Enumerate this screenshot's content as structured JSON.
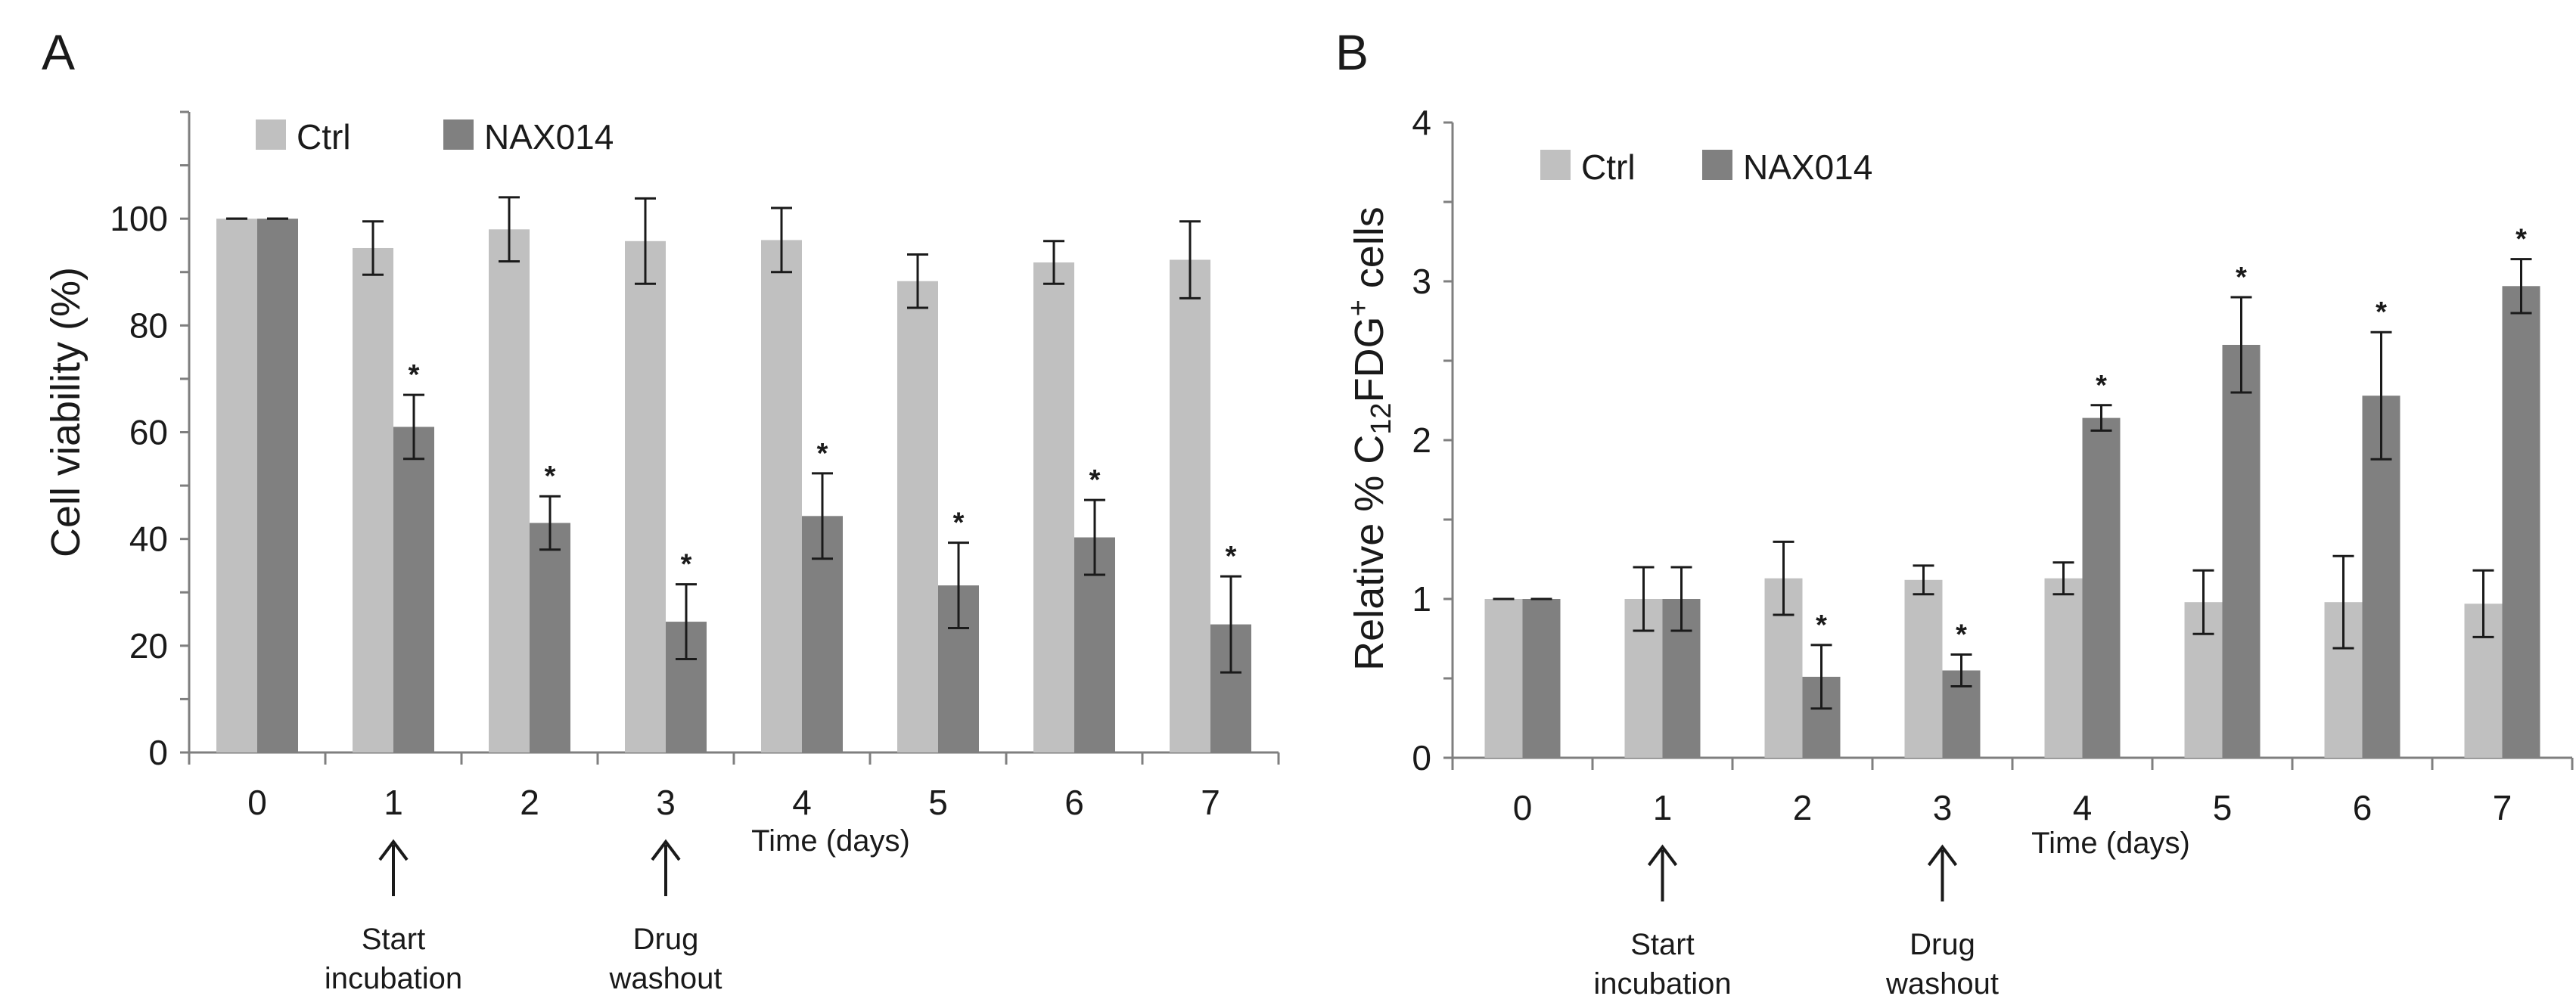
{
  "colors": {
    "ctrl": "#c0c0c0",
    "nax": "#808080",
    "axis": "#7f7f7f",
    "text": "#1a1a1a"
  },
  "chart_data": [
    {
      "panel": "A",
      "type": "bar",
      "ylabel": "Cell viability (%)",
      "xlabel": "Time (days)",
      "categories": [
        "0",
        "1",
        "2",
        "3",
        "4",
        "5",
        "6",
        "7"
      ],
      "ylim": [
        0,
        120
      ],
      "yticks": [
        "0",
        "20",
        "40",
        "60",
        "80",
        "100"
      ],
      "ytick_values": [
        0,
        20,
        40,
        60,
        80,
        100
      ],
      "legend": [
        "Ctrl",
        "NAX014"
      ],
      "legend_position": "top-left",
      "series": [
        {
          "name": "Ctrl",
          "values": [
            100,
            94.5,
            98,
            95.8,
            96,
            88.3,
            91.8,
            92.3
          ],
          "errors": [
            0,
            5,
            6,
            8,
            6,
            5,
            4,
            7.2
          ]
        },
        {
          "name": "NAX014",
          "values": [
            100,
            61,
            43,
            24.5,
            44.3,
            31.3,
            40.3,
            24
          ],
          "errors": [
            0,
            6,
            5,
            7,
            8,
            8,
            7,
            9
          ]
        }
      ],
      "significance": [
        "",
        "*",
        "*",
        "*",
        "*",
        "*",
        "*",
        "*"
      ],
      "annotations": [
        {
          "category": "1",
          "line1": "Start",
          "line2": "incubation"
        },
        {
          "category": "3",
          "line1": "Drug",
          "line2": "washout"
        }
      ]
    },
    {
      "panel": "B",
      "type": "bar",
      "ylabel_main": "Relative % C",
      "ylabel_sub": "12",
      "ylabel_mid": "FDG",
      "ylabel_sup": "+",
      "ylabel_end": " cells",
      "xlabel": "Time (days)",
      "categories": [
        "0",
        "1",
        "2",
        "3",
        "4",
        "5",
        "6",
        "7"
      ],
      "ylim": [
        0,
        4
      ],
      "yticks": [
        "0",
        "1",
        "2",
        "3",
        "4"
      ],
      "ytick_values": [
        0,
        1,
        2,
        3,
        4
      ],
      "legend": [
        "Ctrl",
        "NAX014"
      ],
      "legend_position": "top-left",
      "series": [
        {
          "name": "Ctrl",
          "values": [
            1,
            1,
            1.13,
            1.12,
            1.13,
            0.98,
            0.98,
            0.97
          ],
          "errors": [
            0,
            0.2,
            0.23,
            0.09,
            0.1,
            0.2,
            0.29,
            0.21
          ]
        },
        {
          "name": "NAX014",
          "values": [
            1,
            1,
            0.51,
            0.55,
            2.14,
            2.6,
            2.28,
            2.97
          ],
          "errors": [
            0,
            0.2,
            0.2,
            0.1,
            0.08,
            0.3,
            0.4,
            0.17
          ]
        }
      ],
      "significance": [
        "",
        "",
        "*",
        "*",
        "*",
        "*",
        "*",
        "*"
      ],
      "annotations": [
        {
          "category": "1",
          "line1": "Start",
          "line2": "incubation"
        },
        {
          "category": "3",
          "line1": "Drug",
          "line2": "washout"
        }
      ]
    }
  ]
}
